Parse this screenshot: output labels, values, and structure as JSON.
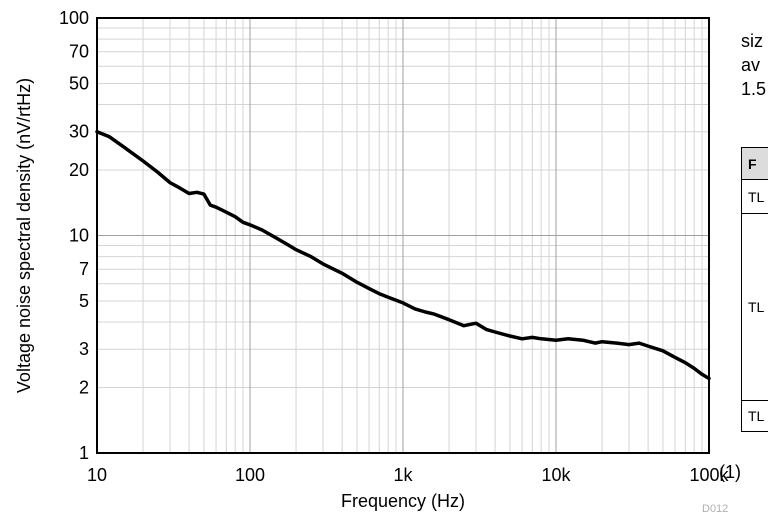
{
  "chart_data": {
    "type": "line",
    "title": "",
    "xlabel": "Frequency (Hz)",
    "ylabel": "Voltage noise spectral density (nV/rtHz)",
    "x_scale": "log",
    "y_scale": "log",
    "xlim": [
      10,
      100000
    ],
    "ylim": [
      1,
      100
    ],
    "grid": true,
    "x_ticks": [
      {
        "value": 10,
        "label": "10"
      },
      {
        "value": 100,
        "label": "100"
      },
      {
        "value": 1000,
        "label": "1k"
      },
      {
        "value": 10000,
        "label": "10k"
      },
      {
        "value": 100000,
        "label": "100k"
      }
    ],
    "y_ticks": [
      {
        "value": 1,
        "label": "1"
      },
      {
        "value": 2,
        "label": "2"
      },
      {
        "value": 3,
        "label": "3"
      },
      {
        "value": 5,
        "label": "5"
      },
      {
        "value": 7,
        "label": "7"
      },
      {
        "value": 10,
        "label": "10"
      },
      {
        "value": 20,
        "label": "20"
      },
      {
        "value": 30,
        "label": "30"
      },
      {
        "value": 50,
        "label": "50"
      },
      {
        "value": 70,
        "label": "70"
      },
      {
        "value": 100,
        "label": "100"
      }
    ],
    "series": [
      {
        "color": "#000000",
        "x": [
          10,
          12,
          15,
          20,
          25,
          30,
          35,
          40,
          45,
          50,
          55,
          60,
          70,
          80,
          90,
          100,
          120,
          150,
          180,
          200,
          250,
          300,
          400,
          500,
          600,
          700,
          800,
          1000,
          1200,
          1400,
          1600,
          2000,
          2500,
          3000,
          3500,
          4000,
          5000,
          6000,
          7000,
          8000,
          10000,
          12000,
          15000,
          18000,
          20000,
          25000,
          30000,
          35000,
          40000,
          50000,
          60000,
          70000,
          80000,
          90000,
          100000
        ],
        "y": [
          30,
          28.5,
          25.5,
          22,
          19.5,
          17.5,
          16.5,
          15.6,
          15.8,
          15.5,
          13.8,
          13.5,
          12.8,
          12.2,
          11.5,
          11.2,
          10.6,
          9.7,
          9.0,
          8.6,
          8.0,
          7.4,
          6.7,
          6.1,
          5.7,
          5.4,
          5.2,
          4.9,
          4.6,
          4.45,
          4.35,
          4.1,
          3.85,
          3.95,
          3.7,
          3.6,
          3.45,
          3.35,
          3.4,
          3.35,
          3.3,
          3.35,
          3.3,
          3.2,
          3.25,
          3.2,
          3.15,
          3.2,
          3.1,
          2.95,
          2.75,
          2.6,
          2.45,
          2.3,
          2.2
        ]
      }
    ]
  },
  "side": {
    "text_lines": [
      "siz",
      "av",
      "1.5"
    ],
    "table_header": "F",
    "table_rows": [
      "TL",
      "TL",
      "TL"
    ],
    "footnote": "(1)",
    "figure_id": "D012"
  }
}
